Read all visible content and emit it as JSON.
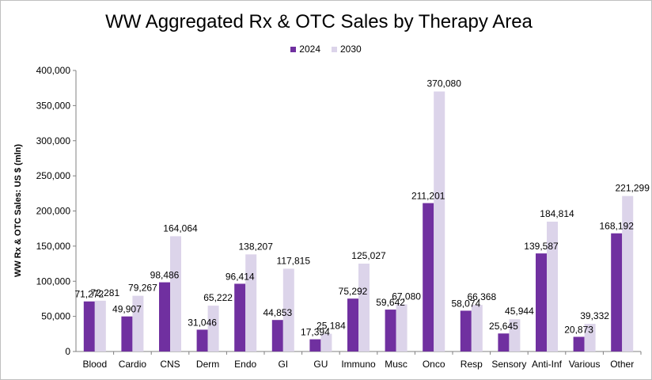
{
  "chart_data": {
    "type": "bar",
    "title": "WW Aggregated Rx & OTC Sales by Therapy Area",
    "xlabel": "",
    "ylabel": "WW Rx & OTC Sales: US $ (mln)",
    "ylim": [
      0,
      400000
    ],
    "yticks": [
      0,
      50000,
      100000,
      150000,
      200000,
      250000,
      300000,
      350000,
      400000
    ],
    "ytick_labels": [
      "0",
      "50,000",
      "100,000",
      "150,000",
      "200,000",
      "250,000",
      "300,000",
      "350,000",
      "400,000"
    ],
    "grid": false,
    "legend": "top-center",
    "categories": [
      "Blood",
      "Cardio",
      "CNS",
      "Derm",
      "Endo",
      "GI",
      "GU",
      "Immuno",
      "Musc",
      "Onco",
      "Resp",
      "Sensory",
      "Anti-Inf",
      "Various",
      "Other"
    ],
    "series": [
      {
        "name": "2024",
        "color": "#7030a0",
        "values": [
          71272,
          49907,
          98486,
          31046,
          96414,
          44853,
          17394,
          75292,
          59642,
          211201,
          58074,
          25645,
          139587,
          20873,
          168192
        ],
        "labels": [
          "71,272",
          "49,907",
          "98,486",
          "31,046",
          "96,414",
          "44,853",
          "17,394",
          "75,292",
          "59,642",
          "211,201",
          "58,074",
          "25,645",
          "139,587",
          "20,873",
          "168,192"
        ]
      },
      {
        "name": "2030",
        "color": "#dcd4ea",
        "values": [
          72281,
          79267,
          164064,
          65222,
          138207,
          117815,
          25184,
          125027,
          67080,
          370080,
          66368,
          45944,
          184814,
          39332,
          221299
        ],
        "labels": [
          "72,281",
          "79,267",
          "164,064",
          "65,222",
          "138,207",
          "117,815",
          "25,184",
          "125,027",
          "67,080",
          "370,080",
          "66,368",
          "45,944",
          "184,814",
          "39,332",
          "221,299"
        ]
      }
    ]
  }
}
